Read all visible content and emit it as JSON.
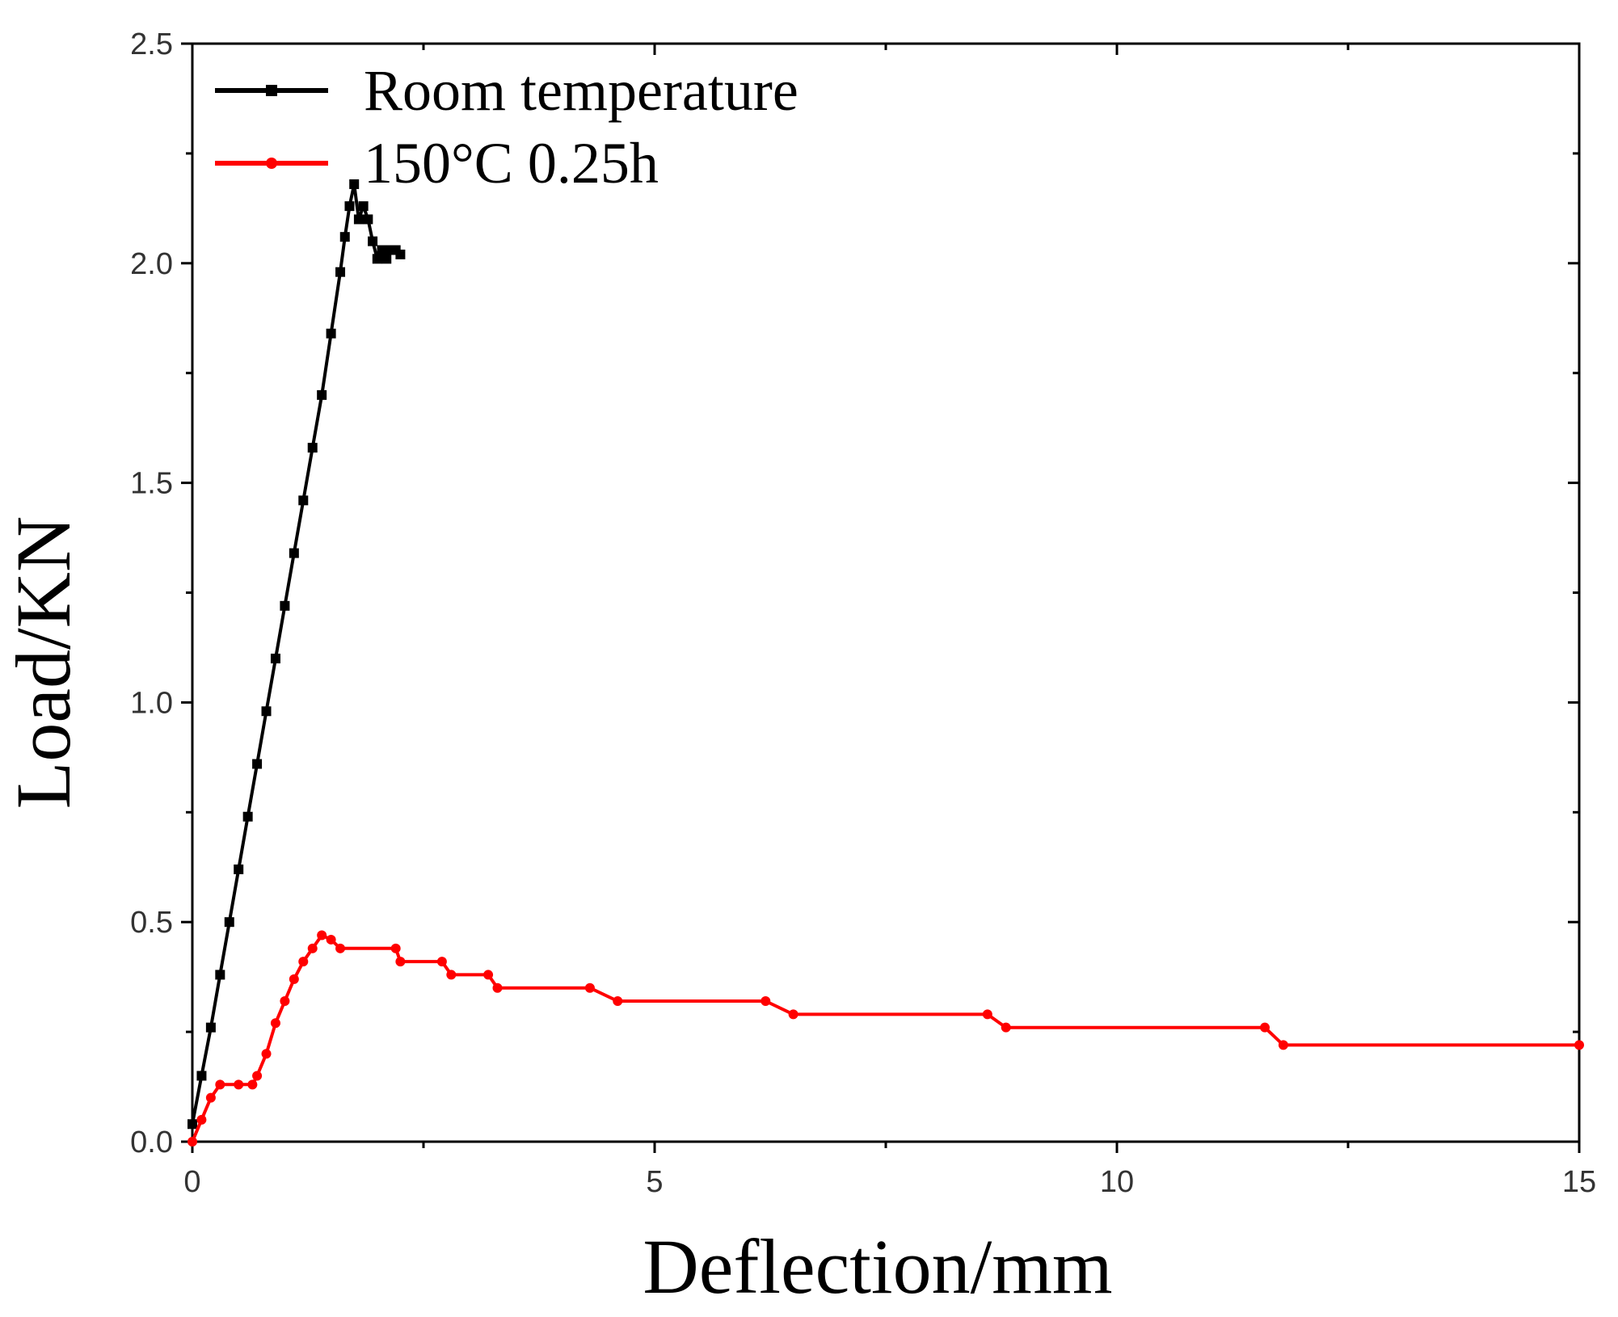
{
  "chart_data": {
    "type": "line",
    "xlabel": "Deflection/mm",
    "ylabel": "Load/KN",
    "xlim": [
      0,
      15
    ],
    "ylim": [
      0,
      2.5
    ],
    "xticks": [
      "0",
      "5",
      "10",
      "15"
    ],
    "yticks": [
      "0.0",
      "0.5",
      "1.0",
      "1.5",
      "2.0",
      "2.5"
    ],
    "grid": false,
    "legend_position": "top-left",
    "series": [
      {
        "name": "Room temperature",
        "color": "#000000",
        "marker": "square",
        "x": [
          0.0,
          0.1,
          0.2,
          0.3,
          0.4,
          0.5,
          0.6,
          0.7,
          0.8,
          0.9,
          1.0,
          1.1,
          1.2,
          1.3,
          1.4,
          1.5,
          1.6,
          1.65,
          1.7,
          1.75,
          1.8,
          1.85,
          1.9,
          1.95,
          2.0,
          2.05,
          2.1,
          2.15,
          2.2,
          2.25
        ],
        "y": [
          0.04,
          0.15,
          0.26,
          0.38,
          0.5,
          0.62,
          0.74,
          0.86,
          0.98,
          1.1,
          1.22,
          1.34,
          1.46,
          1.58,
          1.7,
          1.84,
          1.98,
          2.06,
          2.13,
          2.18,
          2.1,
          2.13,
          2.1,
          2.05,
          2.01,
          2.03,
          2.01,
          2.03,
          2.03,
          2.02
        ]
      },
      {
        "name": "150°C 0.25h",
        "color": "#ff0000",
        "marker": "dot",
        "x": [
          0.0,
          0.1,
          0.2,
          0.3,
          0.5,
          0.65,
          0.7,
          0.8,
          0.9,
          1.0,
          1.1,
          1.2,
          1.3,
          1.4,
          1.5,
          1.6,
          2.2,
          2.25,
          2.7,
          2.8,
          3.2,
          3.3,
          4.3,
          4.6,
          6.2,
          6.5,
          8.6,
          8.8,
          11.6,
          11.8,
          15.0
        ],
        "y": [
          0.0,
          0.05,
          0.1,
          0.13,
          0.13,
          0.13,
          0.15,
          0.2,
          0.27,
          0.32,
          0.37,
          0.41,
          0.44,
          0.47,
          0.46,
          0.44,
          0.44,
          0.41,
          0.41,
          0.38,
          0.38,
          0.35,
          0.35,
          0.32,
          0.32,
          0.29,
          0.29,
          0.26,
          0.26,
          0.22,
          0.22
        ]
      }
    ]
  }
}
